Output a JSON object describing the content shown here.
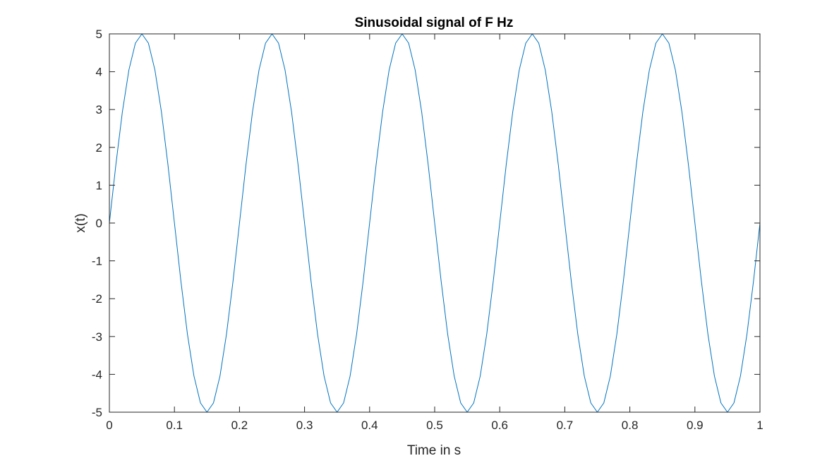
{
  "chart_data": {
    "type": "line",
    "title": "Sinusoidal signal of F Hz",
    "xlabel": "Time in s",
    "ylabel": "x(t)",
    "xlim": [
      0,
      1
    ],
    "ylim": [
      -5,
      5
    ],
    "xticks": [
      0,
      0.1,
      0.2,
      0.3,
      0.4,
      0.5,
      0.6,
      0.7,
      0.8,
      0.9,
      1
    ],
    "xtick_labels": [
      "0",
      "0.1",
      "0.2",
      "0.3",
      "0.4",
      "0.5",
      "0.6",
      "0.7",
      "0.8",
      "0.9",
      "1"
    ],
    "yticks": [
      -5,
      -4,
      -3,
      -2,
      -1,
      0,
      1,
      2,
      3,
      4,
      5
    ],
    "ytick_labels": [
      "-5",
      "-4",
      "-3",
      "-2",
      "-1",
      "0",
      "1",
      "2",
      "3",
      "4",
      "5"
    ],
    "grid": false,
    "box": true,
    "series": [
      {
        "color": "#0072bd",
        "x": [
          0,
          0.01,
          0.02,
          0.03,
          0.04,
          0.05,
          0.06,
          0.07,
          0.08,
          0.09,
          0.1,
          0.11,
          0.12,
          0.13,
          0.14,
          0.15,
          0.16,
          0.17,
          0.18,
          0.19,
          0.2,
          0.21,
          0.22,
          0.23,
          0.24,
          0.25,
          0.26,
          0.27,
          0.28,
          0.29,
          0.3,
          0.31,
          0.32,
          0.33,
          0.34,
          0.35,
          0.36,
          0.37,
          0.38,
          0.39,
          0.4,
          0.41,
          0.42,
          0.43,
          0.44,
          0.45,
          0.46,
          0.47,
          0.48,
          0.49,
          0.5,
          0.51,
          0.52,
          0.53,
          0.54,
          0.55,
          0.56,
          0.57,
          0.58,
          0.59,
          0.6,
          0.61,
          0.62,
          0.63,
          0.64,
          0.65,
          0.66,
          0.67,
          0.68,
          0.69,
          0.7,
          0.71,
          0.72,
          0.73,
          0.74,
          0.75,
          0.76,
          0.77,
          0.78,
          0.79,
          0.8,
          0.81,
          0.82,
          0.83,
          0.84,
          0.85,
          0.86,
          0.87,
          0.88,
          0.89,
          0.9,
          0.91,
          0.92,
          0.93,
          0.94,
          0.95,
          0.96,
          0.97,
          0.98,
          0.99,
          1
        ],
        "y": [
          0,
          1.545,
          2.939,
          4.045,
          4.755,
          5,
          4.755,
          4.045,
          2.939,
          1.545,
          0,
          -1.545,
          -2.939,
          -4.045,
          -4.755,
          -5,
          -4.755,
          -4.045,
          -2.939,
          -1.545,
          0,
          1.545,
          2.939,
          4.045,
          4.755,
          5,
          4.755,
          4.045,
          2.939,
          1.545,
          0,
          -1.545,
          -2.939,
          -4.045,
          -4.755,
          -5,
          -4.755,
          -4.045,
          -2.939,
          -1.545,
          0,
          1.545,
          2.939,
          4.045,
          4.755,
          5,
          4.755,
          4.045,
          2.939,
          1.545,
          0,
          -1.545,
          -2.939,
          -4.045,
          -4.755,
          -5,
          -4.755,
          -4.045,
          -2.939,
          -1.545,
          0,
          1.545,
          2.939,
          4.045,
          4.755,
          5,
          4.755,
          4.045,
          2.939,
          1.545,
          0,
          -1.545,
          -2.939,
          -4.045,
          -4.755,
          -5,
          -4.755,
          -4.045,
          -2.939,
          -1.545,
          0,
          1.545,
          2.939,
          4.045,
          4.755,
          5,
          4.755,
          4.045,
          2.939,
          1.545,
          0,
          -1.545,
          -2.939,
          -4.045,
          -4.755,
          -5,
          -4.755,
          -4.045,
          -2.939,
          -1.545,
          0
        ]
      }
    ]
  }
}
